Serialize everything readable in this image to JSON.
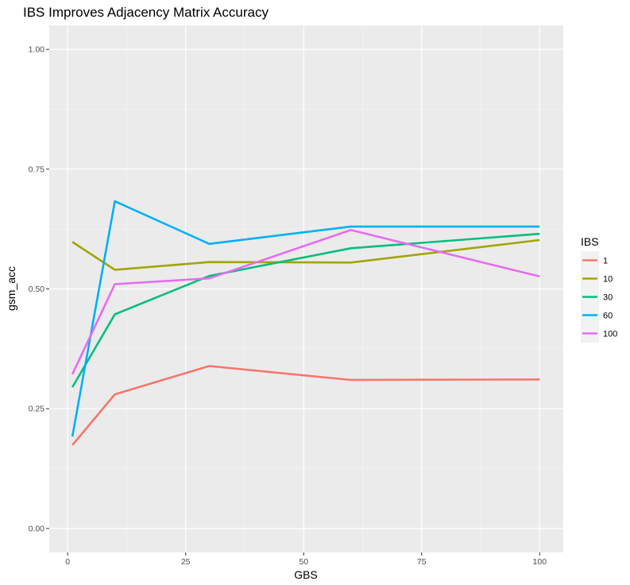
{
  "chart_data": {
    "type": "line",
    "title": "IBS Improves Adjacency Matrix Accuracy",
    "xlabel": "GBS",
    "ylabel": "gsm_acc",
    "xlim": [
      -3.9,
      105
    ],
    "ylim": [
      -0.05,
      1.05
    ],
    "x_ticks": [
      0,
      25,
      50,
      75,
      100
    ],
    "x_tick_labels": [
      "0",
      "25",
      "50",
      "75",
      "100"
    ],
    "y_ticks": [
      0,
      0.25,
      0.5,
      0.75,
      1.0
    ],
    "y_tick_labels": [
      "0.00",
      "0.25",
      "0.50",
      "0.75",
      "1.00"
    ],
    "grid": true,
    "legend_title": "IBS",
    "legend_position": "right",
    "x": [
      1,
      10,
      30,
      60,
      100
    ],
    "series": [
      {
        "name": "1",
        "color": "#F8766D",
        "values": [
          0.174,
          0.28,
          0.339,
          0.31,
          0.311
        ]
      },
      {
        "name": "10",
        "color": "#A3A500",
        "values": [
          0.598,
          0.54,
          0.556,
          0.555,
          0.602
        ]
      },
      {
        "name": "30",
        "color": "#00BF7D",
        "values": [
          0.295,
          0.447,
          0.527,
          0.585,
          0.615
        ]
      },
      {
        "name": "60",
        "color": "#00B0F6",
        "values": [
          0.192,
          0.683,
          0.594,
          0.63,
          0.63
        ]
      },
      {
        "name": "100",
        "color": "#E76BF3",
        "values": [
          0.322,
          0.51,
          0.522,
          0.623,
          0.526
        ]
      }
    ]
  }
}
